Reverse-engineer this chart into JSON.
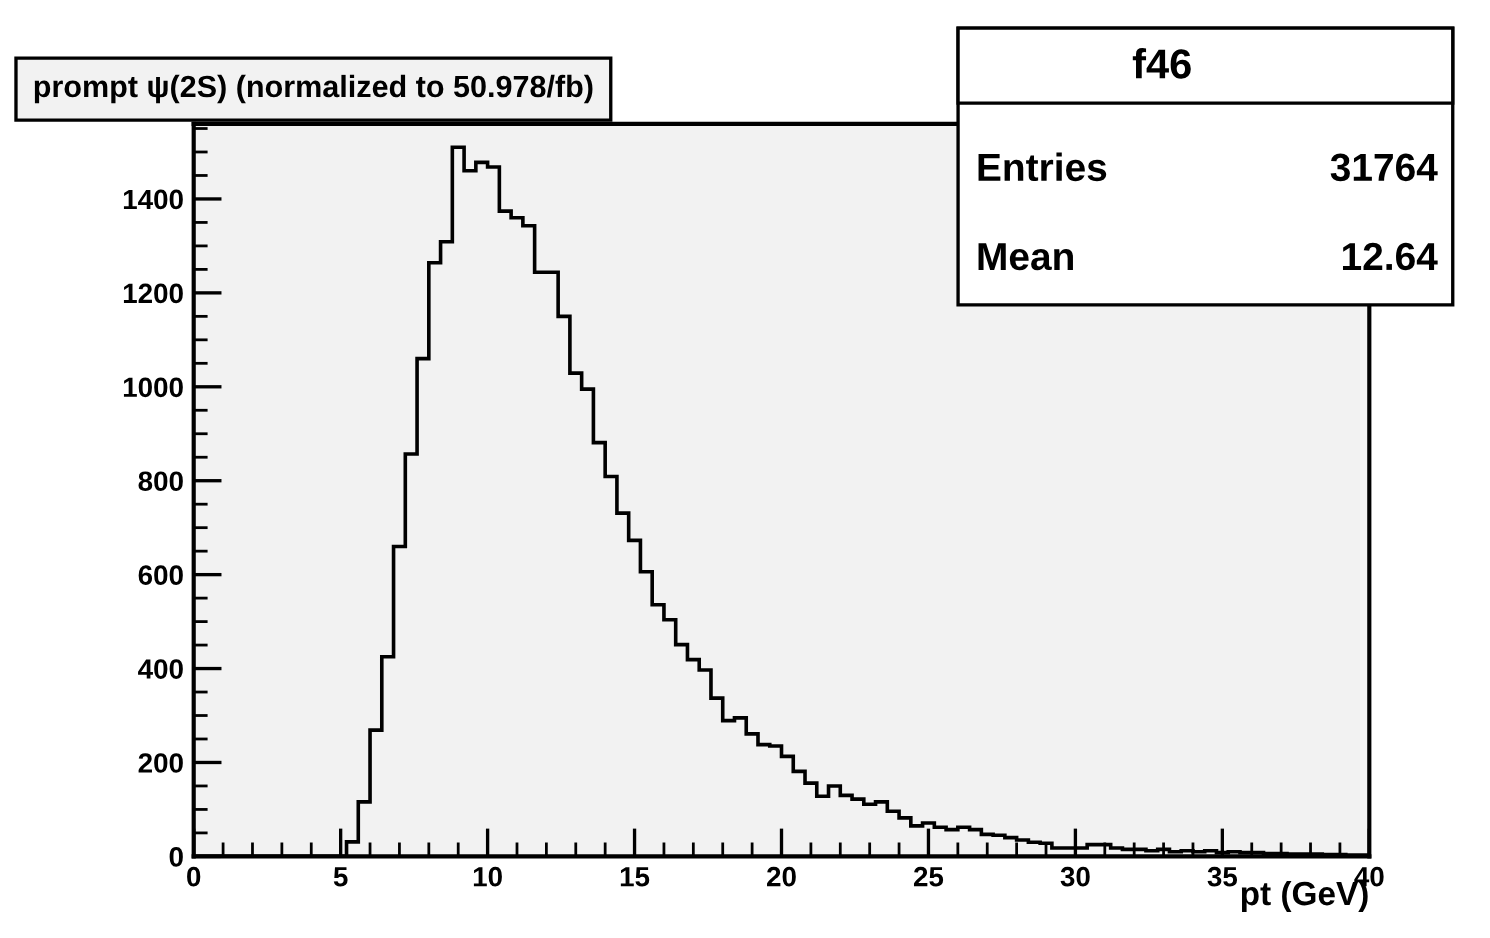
{
  "chart_data": {
    "type": "histogram",
    "title": "prompt ψ(2S) (normalized to 50.978/fb)",
    "xlabel": "pt (GeV)",
    "annotations": [
      "f46",
      "Entries",
      "31764",
      "Mean",
      "12.64"
    ],
    "bins": [
      0,
      0.4,
      0.8,
      1.2,
      1.6,
      2.0,
      2.4,
      2.8,
      3.2,
      3.6,
      4.0,
      4.4,
      4.8,
      5.2,
      5.6,
      6.0,
      6.4,
      6.8,
      7.2,
      7.6,
      8.0,
      8.4,
      8.8,
      9.2,
      9.6,
      10.0,
      10.4,
      10.8,
      11.2,
      11.6,
      12.0,
      12.4,
      12.8,
      13.2,
      13.6,
      14.0,
      14.4,
      14.8,
      15.2,
      15.6,
      16.0,
      16.4,
      16.8,
      17.2,
      17.6,
      18.0,
      18.4,
      18.8,
      19.2,
      19.6,
      20.0,
      20.4,
      20.8,
      21.2,
      21.6,
      22.0,
      22.4,
      22.8,
      23.2,
      23.6,
      24.0,
      24.4,
      24.8,
      25.2,
      25.6,
      26.0,
      26.4,
      26.8,
      27.2,
      27.6,
      28.0,
      28.4,
      28.8,
      29.2,
      29.6,
      30.0,
      30.4,
      30.8,
      31.2,
      31.6,
      32.0,
      32.4,
      32.8,
      33.2,
      33.6,
      34.0,
      34.4,
      34.8,
      35.2,
      35.6,
      36.0,
      36.4,
      36.8,
      37.2,
      37.6,
      38.0,
      38.4,
      38.8,
      39.2,
      39.6,
      40.0
    ],
    "values": [
      0,
      0,
      0,
      0,
      0,
      0,
      0,
      0,
      0,
      0,
      0,
      0,
      0,
      31,
      116,
      269,
      425,
      660,
      857,
      1060,
      1264,
      1309,
      1510,
      1460,
      1478,
      1468,
      1374,
      1360,
      1343,
      1244,
      1244,
      1150,
      1029,
      995,
      881,
      809,
      731,
      673,
      606,
      536,
      504,
      451,
      419,
      397,
      337,
      289,
      295,
      261,
      238,
      235,
      213,
      181,
      156,
      128,
      150,
      130,
      122,
      111,
      116,
      96,
      82,
      65,
      71,
      62,
      57,
      62,
      57,
      47,
      45,
      40,
      35,
      30,
      28,
      18,
      18,
      18,
      25,
      25,
      18,
      15,
      15,
      12,
      15,
      10,
      12,
      10,
      12,
      8,
      10,
      8,
      8,
      6,
      6,
      5,
      5,
      5,
      4,
      4,
      3,
      3
    ],
    "color": "#000000",
    "xlim": [
      0,
      40
    ],
    "ylim": [
      0,
      1560
    ],
    "xticks": [
      0,
      5,
      10,
      15,
      20,
      25,
      30,
      35,
      40
    ],
    "yticks": [
      0,
      200,
      400,
      600,
      800,
      1000,
      1200,
      1400
    ],
    "grid": false,
    "legend": false
  }
}
